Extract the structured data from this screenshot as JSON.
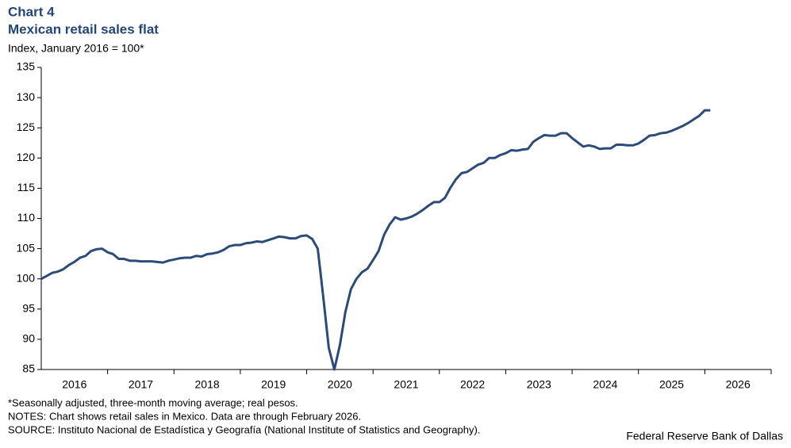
{
  "chart_data": {
    "type": "line",
    "title": "Chart 4",
    "subtitle": "Mexican retail sales flat",
    "y_label": "Index,  January 2016 = 100*",
    "notes": [
      "*Seasonally adjusted, three-month moving average; real pesos.",
      "NOTES: Chart shows retail sales in Mexico. Data are through February 2026.",
      "SOURCE: Instituto Nacional de Estadística y Geografía (National Institute of Statistics and Geography)."
    ],
    "source": "Federal Reserve Bank of Dallas",
    "x": [
      2016,
      2016.083,
      2016.167,
      2016.25,
      2016.333,
      2016.417,
      2016.5,
      2016.583,
      2016.667,
      2016.75,
      2016.833,
      2016.917,
      2017,
      2017.083,
      2017.167,
      2017.25,
      2017.333,
      2017.417,
      2017.5,
      2017.583,
      2017.667,
      2017.75,
      2017.833,
      2017.917,
      2018,
      2018.083,
      2018.167,
      2018.25,
      2018.333,
      2018.417,
      2018.5,
      2018.583,
      2018.667,
      2018.75,
      2018.833,
      2018.917,
      2019,
      2019.083,
      2019.167,
      2019.25,
      2019.333,
      2019.417,
      2019.5,
      2019.583,
      2019.667,
      2019.75,
      2019.833,
      2019.917,
      2020,
      2020.083,
      2020.167,
      2020.25,
      2020.333,
      2020.417,
      2020.5,
      2020.583,
      2020.667,
      2020.75,
      2020.833,
      2020.917,
      2021,
      2021.083,
      2021.167,
      2021.25,
      2021.333,
      2021.417,
      2021.5,
      2021.583,
      2021.667,
      2021.75,
      2021.833,
      2021.917,
      2022,
      2022.083,
      2022.167,
      2022.25,
      2022.333,
      2022.417,
      2022.5,
      2022.583,
      2022.667,
      2022.75,
      2022.833,
      2022.917,
      2023,
      2023.083,
      2023.167,
      2023.25,
      2023.333,
      2023.417,
      2023.5,
      2023.583,
      2023.667,
      2023.75,
      2023.833,
      2023.917,
      2024,
      2024.083,
      2024.167,
      2024.25,
      2024.333,
      2024.417,
      2024.5,
      2024.583,
      2024.667,
      2024.75,
      2024.833,
      2024.917,
      2025,
      2025.083,
      2025.167,
      2025.25,
      2025.333,
      2025.417,
      2025.5,
      2025.583,
      2025.667,
      2025.75,
      2025.833,
      2025.917,
      2026,
      2026.083
    ],
    "series": [
      {
        "name": "Mexican retail sales",
        "color": "#2d4b79",
        "values": [
          100.0,
          100.5,
          101.0,
          101.2,
          101.6,
          102.3,
          102.8,
          103.5,
          103.8,
          104.6,
          104.9,
          105.0,
          104.4,
          104.1,
          103.3,
          103.3,
          103.0,
          103.0,
          102.9,
          102.9,
          102.9,
          102.8,
          102.7,
          103.0,
          103.2,
          103.4,
          103.5,
          103.5,
          103.8,
          103.7,
          104.1,
          104.2,
          104.4,
          104.8,
          105.4,
          105.6,
          105.6,
          105.9,
          106.0,
          106.2,
          106.1,
          106.4,
          106.7,
          107.0,
          106.9,
          106.7,
          106.7,
          107.1,
          107.2,
          106.6,
          105.0,
          97.0,
          88.6,
          85.0,
          89.0,
          94.5,
          98.3,
          100.0,
          101.1,
          101.7,
          103.1,
          104.6,
          107.3,
          109.0,
          110.2,
          109.8,
          110.0,
          110.3,
          110.8,
          111.4,
          112.1,
          112.7,
          112.7,
          113.4,
          115.1,
          116.5,
          117.5,
          117.7,
          118.3,
          118.9,
          119.2,
          120.0,
          120.0,
          120.5,
          120.8,
          121.3,
          121.2,
          121.4,
          121.5,
          122.7,
          123.3,
          123.8,
          123.7,
          123.7,
          124.1,
          124.1,
          123.3,
          122.6,
          121.9,
          122.1,
          121.9,
          121.5,
          121.6,
          121.6,
          122.2,
          122.2,
          122.1,
          122.1,
          122.4,
          123.0,
          123.7,
          123.8,
          124.1,
          124.2,
          124.5,
          124.9,
          125.3,
          125.8,
          126.4,
          127.0,
          127.9,
          127.9
        ]
      }
    ],
    "xlim": [
      2016,
      2027
    ],
    "xticks": [
      {
        "value": 2016.5,
        "label": "2016"
      },
      {
        "value": 2017.5,
        "label": "2017"
      },
      {
        "value": 2018.5,
        "label": "2018"
      },
      {
        "value": 2019.5,
        "label": "2019"
      },
      {
        "value": 2020.5,
        "label": "2020"
      },
      {
        "value": 2021.5,
        "label": "2021"
      },
      {
        "value": 2022.5,
        "label": "2022"
      },
      {
        "value": 2023.5,
        "label": "2023"
      },
      {
        "value": 2024.5,
        "label": "2024"
      },
      {
        "value": 2025.5,
        "label": "2025"
      },
      {
        "value": 2026.5,
        "label": "2026"
      }
    ],
    "ylim": [
      85,
      135
    ],
    "yticks": [
      85,
      90,
      95,
      100,
      105,
      110,
      115,
      120,
      125,
      130,
      135
    ],
    "grid": false
  }
}
